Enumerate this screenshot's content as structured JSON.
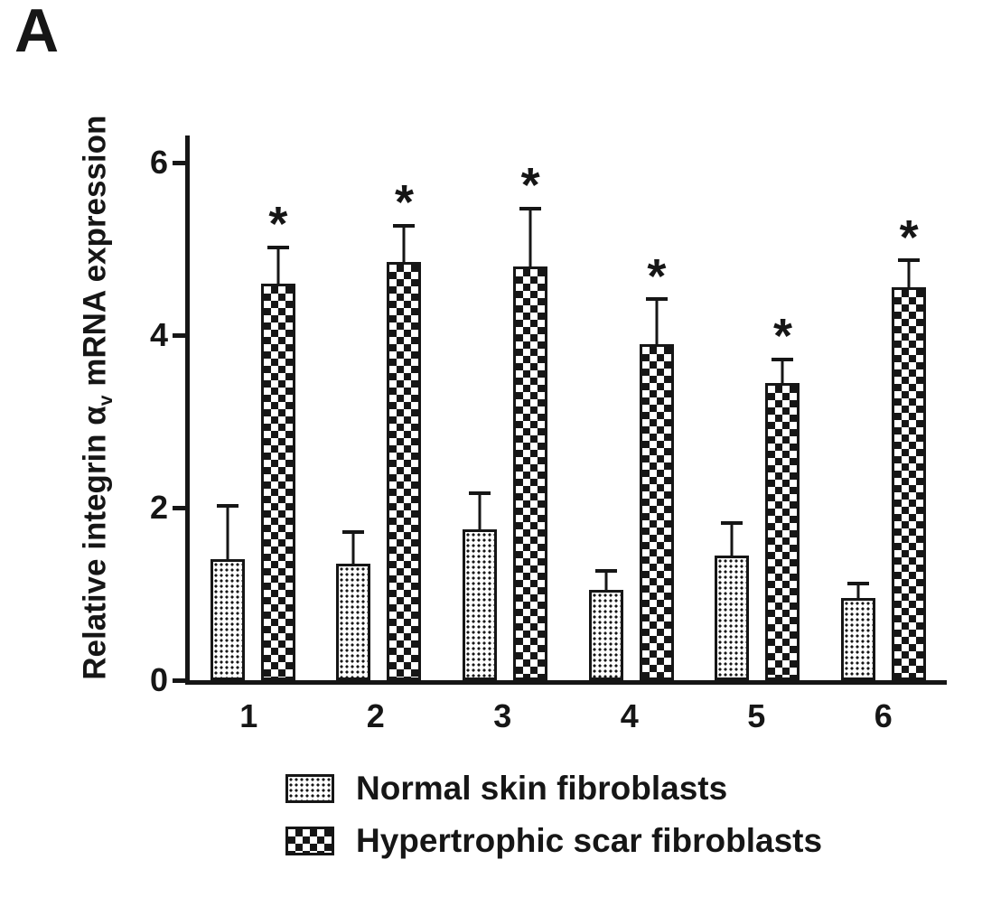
{
  "panel_label": "A",
  "chart_data": {
    "type": "bar",
    "title": "",
    "ylabel_prefix": "Relative integrin α",
    "ylabel_sub": "v",
    "ylabel_suffix": " mRNA expression",
    "xlabel": "",
    "categories": [
      "1",
      "2",
      "3",
      "4",
      "5",
      "6"
    ],
    "ylim": [
      0,
      6
    ],
    "yticks": [
      0,
      2,
      4,
      6
    ],
    "grid": false,
    "legend_position": "bottom",
    "bar_color": "#161616",
    "series": [
      {
        "name": "Normal skin fibroblasts",
        "pattern": "stipple",
        "values": [
          1.4,
          1.35,
          1.75,
          1.05,
          1.45,
          0.95
        ],
        "errors": [
          0.65,
          0.4,
          0.45,
          0.25,
          0.4,
          0.2
        ],
        "significance": [
          "",
          "",
          "",
          "",
          "",
          ""
        ]
      },
      {
        "name": "Hypertrophic scar fibroblasts",
        "pattern": "checkerboard",
        "values": [
          4.6,
          4.85,
          4.8,
          3.9,
          3.45,
          4.55
        ],
        "errors": [
          0.45,
          0.45,
          0.7,
          0.55,
          0.3,
          0.35
        ],
        "significance": [
          "*",
          "*",
          "*",
          "*",
          "*",
          "*"
        ]
      }
    ]
  }
}
